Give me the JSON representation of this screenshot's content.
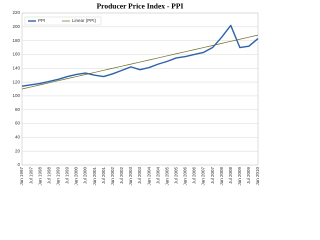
{
  "chart_data": {
    "type": "line",
    "title": "Producer Price Index - PPI",
    "categories": [
      "Jan 1997",
      "Jul 1997",
      "Jan 1998",
      "Jul 1998",
      "Jan 1999",
      "Jul 1999",
      "Jan 2000",
      "Jul 2000",
      "Jan 2001",
      "Jul 2001",
      "Jan 2002",
      "Jul 2002",
      "Jan 2003",
      "Jul 2003",
      "Jan 2004",
      "Jul 2004",
      "Jan 2005",
      "Jul 2005",
      "Jan 2006",
      "Jul 2006",
      "Jan 2007",
      "Jul 2007",
      "Jan 2008",
      "Jul 2008",
      "Jan 2009",
      "Jul 2009",
      "Jan 2010"
    ],
    "series": [
      {
        "name": "PPI",
        "color": "#2e62a8",
        "width": 1.4,
        "values": [
          114,
          116,
          118,
          121,
          124,
          128,
          131,
          133,
          130,
          128,
          132,
          137,
          142,
          138,
          141,
          146,
          150,
          155,
          157,
          160,
          163,
          170,
          185,
          202,
          170,
          172,
          183
        ]
      },
      {
        "name": "Linear (PPI)",
        "color": "#6b6b2a",
        "width": 0.7,
        "values": [
          110,
          113,
          116,
          119,
          122,
          125,
          128,
          131,
          134,
          137,
          140,
          143,
          146,
          149,
          152,
          155,
          158,
          161,
          164,
          167,
          170,
          173,
          176,
          179,
          182,
          185,
          188
        ]
      }
    ],
    "ylim": [
      0,
      220
    ],
    "yticks": [
      0,
      20,
      40,
      60,
      80,
      100,
      120,
      140,
      160,
      180,
      200,
      220
    ],
    "grid": true,
    "legend": "top-left"
  }
}
